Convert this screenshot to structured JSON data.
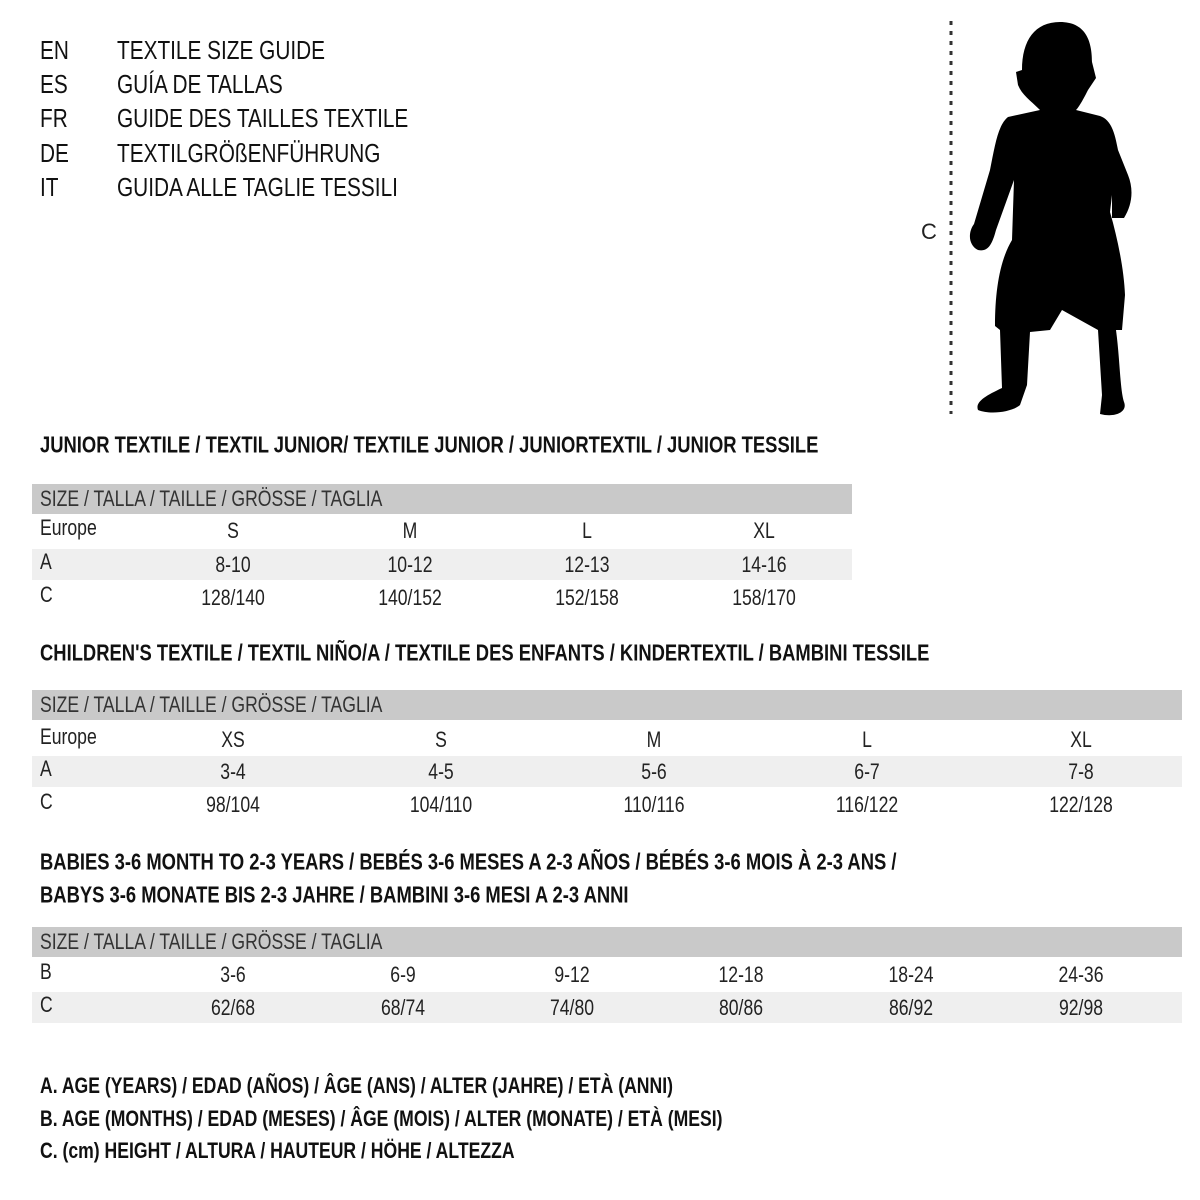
{
  "languages": [
    {
      "code": "EN",
      "title": "TEXTILE SIZE GUIDE"
    },
    {
      "code": "ES",
      "title": "GUÍA DE TALLAS"
    },
    {
      "code": "FR",
      "title": "GUIDE DES TAILLES TEXTILE"
    },
    {
      "code": "DE",
      "title": "TEXTILGRÖßENFÜHRUNG"
    },
    {
      "code": "IT",
      "title": "GUIDA ALLE TAGLIE TESSILI"
    }
  ],
  "figure": {
    "measure_label": "C"
  },
  "tables": [
    {
      "title_lines": [
        "JUNIOR TEXTILE / TEXTIL JUNIOR/ TEXTILE JUNIOR / JUNIORTEXTIL / JUNIOR TESSILE"
      ],
      "header": "SIZE / TALLA / TAILLE / GRÖSSE / TAGLIA",
      "rows": [
        {
          "label": "Europe",
          "values": [
            "S",
            "M",
            "L",
            "XL"
          ]
        },
        {
          "label": "A",
          "values": [
            "8-10",
            "10-12",
            "12-13",
            "14-16"
          ]
        },
        {
          "label": "C",
          "values": [
            "128/140",
            "140/152",
            "152/158",
            "158/170"
          ]
        }
      ]
    },
    {
      "title_lines": [
        "CHILDREN'S TEXTILE / TEXTIL NIÑO/A / TEXTILE DES ENFANTS / KINDERTEXTIL / BAMBINI TESSILE"
      ],
      "header": "SIZE / TALLA / TAILLE / GRÖSSE / TAGLIA",
      "rows": [
        {
          "label": "Europe",
          "values": [
            "XS",
            "S",
            "M",
            "L",
            "XL"
          ]
        },
        {
          "label": "A",
          "values": [
            "3-4",
            "4-5",
            "5-6",
            "6-7",
            "7-8"
          ]
        },
        {
          "label": "C",
          "values": [
            "98/104",
            "104/110",
            "110/116",
            "116/122",
            "122/128"
          ]
        }
      ]
    },
    {
      "title_lines": [
        "BABIES 3-6 MONTH TO 2-3 YEARS / BEBÉS 3-6 MESES A 2-3 AÑOS / BÉBÉS 3-6 MOIS À 2-3 ANS /",
        "BABYS 3-6 MONATE BIS 2-3 JAHRE / BAMBINI 3-6 MESI A 2-3 ANNI"
      ],
      "header": "SIZE / TALLA / TAILLE / GRÖSSE / TAGLIA",
      "rows": [
        {
          "label": "B",
          "values": [
            "3-6",
            "6-9",
            "9-12",
            "12-18",
            "18-24",
            "24-36"
          ]
        },
        {
          "label": "C",
          "values": [
            "62/68",
            "68/74",
            "74/80",
            "80/86",
            "86/92",
            "92/98"
          ]
        }
      ]
    }
  ],
  "legend": [
    "A. AGE (YEARS) / EDAD (AÑOS) / ÂGE (ANS) / ALTER (JAHRE) / ETÀ (ANNI)",
    "B. AGE (MONTHS) / EDAD (MESES) / ÂGE (MOIS) / ALTER (MONATE) / ETÀ (MESI)",
    "C. (cm) HEIGHT / ALTURA / HAUTEUR / HÖHE / ALTEZZA"
  ],
  "colors": {
    "header_bar": "#c9c9c9",
    "stripe": "#efefef",
    "text": "#111111"
  }
}
